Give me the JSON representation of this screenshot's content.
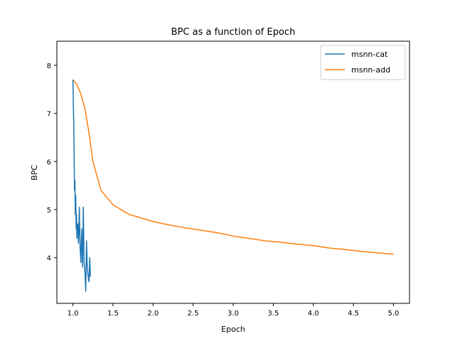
{
  "chart_data": {
    "type": "line",
    "title": "BPC as a function of Epoch",
    "xlabel": "Epoch",
    "ylabel": "BPC",
    "xlim": [
      0.8,
      5.2
    ],
    "ylim": [
      3.05,
      8.5
    ],
    "xticks": [
      1.0,
      1.5,
      2.0,
      2.5,
      3.0,
      3.5,
      4.0,
      4.5,
      5.0
    ],
    "xtick_labels": [
      "1.0",
      "1.5",
      "2.0",
      "2.5",
      "3.0",
      "3.5",
      "4.0",
      "4.5",
      "5.0"
    ],
    "yticks": [
      4,
      5,
      6,
      7,
      8
    ],
    "ytick_labels": [
      "4",
      "5",
      "6",
      "7",
      "8"
    ],
    "grid": false,
    "legend_position": "top-right",
    "series": [
      {
        "name": "msnn-cat",
        "color": "#1f77b4",
        "x": [
          1.0,
          1.01,
          1.015,
          1.02,
          1.025,
          1.03,
          1.035,
          1.04,
          1.045,
          1.05,
          1.06,
          1.07,
          1.08,
          1.09,
          1.1,
          1.11,
          1.12,
          1.13,
          1.14,
          1.15,
          1.16,
          1.17,
          1.18,
          1.19,
          1.2,
          1.21,
          1.22
        ],
        "y": [
          7.7,
          6.8,
          6.2,
          5.4,
          5.6,
          4.9,
          5.3,
          4.6,
          4.9,
          4.4,
          4.7,
          4.3,
          5.05,
          4.2,
          3.9,
          4.6,
          3.8,
          5.05,
          3.9,
          3.7,
          3.3,
          4.35,
          3.8,
          3.6,
          3.5,
          4.0,
          3.6
        ]
      },
      {
        "name": "msnn-add",
        "color": "#ff7f0e",
        "x": [
          1.0,
          1.05,
          1.1,
          1.15,
          1.2,
          1.25,
          1.3,
          1.35,
          1.4,
          1.5,
          1.6,
          1.7,
          1.8,
          1.9,
          2.0,
          2.2,
          2.4,
          2.6,
          2.8,
          3.0,
          3.2,
          3.4,
          3.6,
          3.8,
          4.0,
          4.2,
          4.4,
          4.6,
          4.8,
          5.0
        ],
        "y": [
          7.7,
          7.6,
          7.4,
          7.1,
          6.6,
          6.0,
          5.7,
          5.4,
          5.3,
          5.1,
          5.0,
          4.9,
          4.85,
          4.8,
          4.75,
          4.68,
          4.62,
          4.57,
          4.52,
          4.45,
          4.4,
          4.35,
          4.32,
          4.28,
          4.25,
          4.2,
          4.17,
          4.13,
          4.1,
          4.07
        ]
      }
    ]
  }
}
